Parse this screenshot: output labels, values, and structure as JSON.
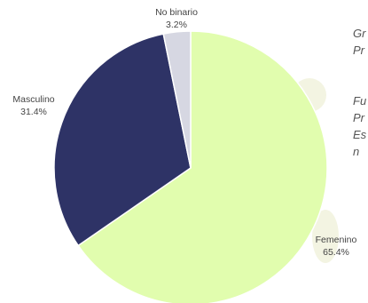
{
  "chart_data": {
    "type": "pie",
    "slices": [
      {
        "label": "Femenino",
        "percent_label": "65.4%",
        "value": 65.4,
        "color": "#e1fdae"
      },
      {
        "label": "Masculino",
        "percent_label": "31.4%",
        "value": 31.4,
        "color": "#2e3366"
      },
      {
        "label": "No binario",
        "percent_label": "3.2%",
        "value": 3.2,
        "color": "#d6d7e2"
      }
    ],
    "start_angle_deg": 0,
    "direction": "clockwise",
    "slice_border_color": "#ffffff"
  },
  "side_text": {
    "title_lines": [
      "Gr",
      "Pr"
    ],
    "source_lines": [
      "Fu",
      "Pr",
      "Es",
      "n"
    ]
  }
}
